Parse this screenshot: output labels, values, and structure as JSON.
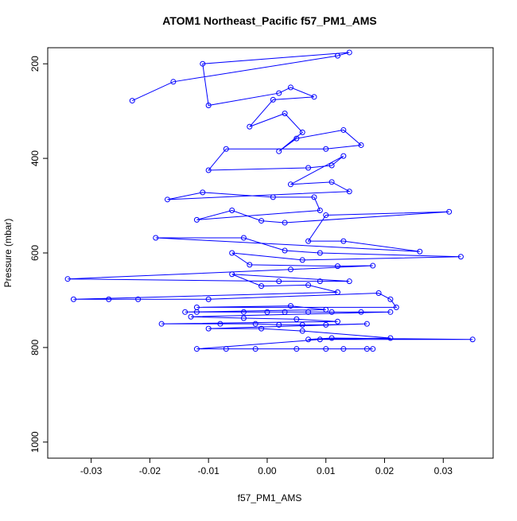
{
  "chart_data": {
    "type": "line",
    "title": "ATOM1 Northeast_Pacific f57_PM1_AMS",
    "x_label": "f57_PM1_AMS",
    "y_label": "Pressure (mbar)",
    "color": "#0000ff",
    "markers": true,
    "x": [
      -0.023,
      -0.016,
      0.012,
      0.014,
      -0.011,
      -0.01,
      0.002,
      0.004,
      0.008,
      0.001,
      -0.003,
      0.003,
      0.006,
      0.002,
      0.005,
      0.013,
      0.016,
      0.01,
      -0.007,
      -0.01,
      0.007,
      0.011,
      0.013,
      0.004,
      0.011,
      0.014,
      -0.017,
      -0.011,
      0.001,
      0.008,
      0.009,
      -0.012,
      -0.006,
      -0.001,
      0.003,
      0.031,
      0.01,
      0.007,
      0.013,
      0.026,
      -0.019,
      -0.004,
      0.003,
      0.009,
      0.033,
      0.006,
      -0.006,
      -0.003,
      0.012,
      0.018,
      0.004,
      -0.034,
      0.002,
      0.009,
      0.014,
      -0.006,
      -0.001,
      0.007,
      0.012,
      -0.033,
      -0.027,
      -0.022,
      -0.01,
      0.019,
      0.021,
      0.022,
      -0.012,
      0.004,
      0.01,
      -0.014,
      -0.012,
      -0.004,
      0.0,
      0.003,
      0.007,
      0.011,
      0.016,
      0.021,
      -0.013,
      -0.004,
      0.005,
      0.012,
      -0.018,
      -0.008,
      -0.002,
      0.002,
      0.006,
      0.01,
      0.017,
      -0.01,
      -0.001,
      0.006,
      0.021,
      0.007,
      0.011,
      0.035,
      0.009,
      -0.012,
      -0.007,
      -0.002,
      0.005,
      0.01,
      0.013,
      0.017,
      0.018
    ],
    "values": [
      278,
      238,
      183,
      176,
      200,
      288,
      262,
      250,
      270,
      276,
      333,
      305,
      345,
      385,
      358,
      340,
      372,
      380,
      380,
      425,
      420,
      415,
      395,
      455,
      450,
      470,
      487,
      472,
      482,
      482,
      510,
      530,
      510,
      532,
      536,
      513,
      520,
      575,
      575,
      597,
      568,
      568,
      595,
      600,
      608,
      615,
      600,
      625,
      628,
      627,
      635,
      655,
      660,
      660,
      660,
      645,
      670,
      668,
      683,
      698,
      698,
      698,
      698,
      685,
      698,
      715,
      715,
      712,
      720,
      725,
      725,
      725,
      725,
      725,
      725,
      725,
      725,
      725,
      735,
      738,
      740,
      745,
      750,
      750,
      750,
      752,
      752,
      752,
      750,
      760,
      760,
      765,
      780,
      783,
      780,
      783,
      783,
      803,
      803,
      803,
      803,
      803,
      803,
      803,
      803
    ],
    "xlim": [
      -0.0374,
      0.0385
    ],
    "ylim": [
      1034,
      166
    ],
    "xticks": [
      -0.03,
      -0.02,
      -0.01,
      {
        "value": 0,
        "label": "0.00"
      },
      0.01,
      0.02,
      0.03
    ],
    "yticks": [
      200,
      400,
      600,
      800,
      1000
    ]
  }
}
